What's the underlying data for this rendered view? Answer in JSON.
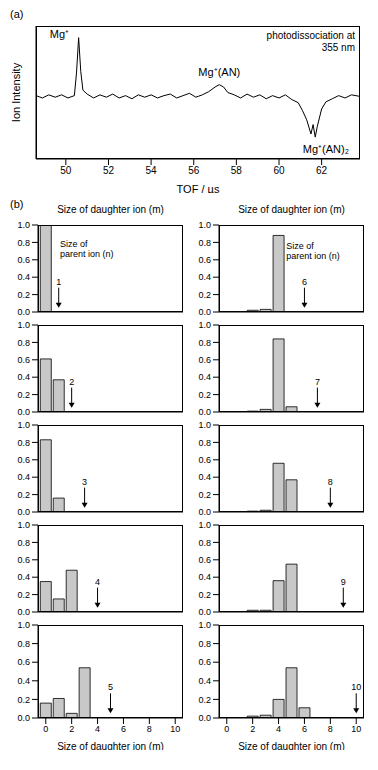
{
  "chart_data": [
    {
      "type": "line",
      "panel_label": "(a)",
      "subtitle": "photodissociation at 355 nm",
      "xlabel": "TOF / µs",
      "ylabel": "Ion Intensity",
      "color": "#000000",
      "tick_labels": "x",
      "x": [
        48.6,
        48.9,
        49.2,
        49.5,
        49.8,
        50.1,
        50.4,
        50.5,
        50.6,
        50.7,
        50.8,
        51.0,
        51.3,
        51.6,
        51.9,
        52.2,
        52.5,
        52.8,
        53.1,
        53.4,
        53.7,
        54.0,
        54.3,
        54.6,
        54.9,
        55.2,
        55.5,
        55.8,
        56.1,
        56.4,
        56.7,
        57.0,
        57.2,
        57.4,
        57.6,
        57.9,
        58.2,
        58.5,
        58.8,
        59.1,
        59.4,
        59.7,
        60.0,
        60.3,
        60.6,
        60.9,
        61.1,
        61.3,
        61.5,
        61.6,
        61.7,
        61.8,
        62.0,
        62.2,
        62.5,
        62.8,
        63.1,
        63.4,
        63.8
      ],
      "values": [
        0.01,
        -0.02,
        0.02,
        -0.01,
        0.02,
        -0.02,
        0.01,
        0.3,
        0.75,
        0.32,
        0.08,
        0.03,
        -0.02,
        0.02,
        -0.01,
        0.03,
        -0.02,
        0.01,
        -0.03,
        0.02,
        -0.01,
        0.02,
        -0.02,
        0.01,
        0.03,
        -0.02,
        0.01,
        0.04,
        -0.01,
        0.02,
        0.06,
        0.12,
        0.15,
        0.12,
        0.05,
        0.02,
        -0.02,
        0.03,
        -0.01,
        0.02,
        -0.03,
        0.01,
        -0.02,
        0.02,
        -0.04,
        -0.08,
        -0.18,
        -0.3,
        -0.48,
        -0.36,
        -0.52,
        -0.38,
        -0.16,
        -0.07,
        -0.03,
        0.01,
        -0.02,
        0.02,
        0.0
      ],
      "xlim": [
        48.6,
        63.8
      ],
      "xticks": [
        50,
        52,
        54,
        56,
        58,
        60,
        62
      ],
      "ylim": [
        -0.8,
        0.9
      ],
      "annotations": [
        {
          "text": "Mg⁺",
          "x": 49.7,
          "y": 0.78
        },
        {
          "text": "Mg⁺(AN)",
          "x": 57.2,
          "y": 0.3
        },
        {
          "text": "Mg⁺(AN)₂",
          "x": 62.2,
          "y": -0.68
        }
      ]
    },
    {
      "type": "bar",
      "panel_label": "(b)",
      "title": "Size of daughter ion (m)",
      "tick_labels": "y",
      "parent_size": 1,
      "color": "#c8c8c8",
      "x": [
        0,
        1,
        2,
        3,
        4,
        5,
        6,
        7,
        8,
        9,
        10
      ],
      "values": [
        1.0,
        0,
        0,
        0,
        0,
        0,
        0,
        0,
        0,
        0,
        0
      ],
      "xlim": [
        -0.6,
        10.6
      ],
      "xticks": [
        0,
        2,
        4,
        6,
        8,
        10
      ],
      "ylim": [
        0,
        1
      ],
      "yticks": [
        {
          "value": 0,
          "label": "0.0"
        },
        0.2,
        0.4,
        0.6,
        0.8,
        {
          "value": 1,
          "label": "1.0"
        }
      ],
      "annotations": [
        {
          "text": "Size of parent ion (n)",
          "x": 1.1,
          "y": 0.75
        }
      ]
    },
    {
      "type": "bar",
      "tick_labels": "y",
      "parent_size": 2,
      "color": "#c8c8c8",
      "x": [
        0,
        1,
        2,
        3,
        4,
        5,
        6,
        7,
        8,
        9,
        10
      ],
      "values": [
        0.61,
        0.37,
        0,
        0,
        0,
        0,
        0,
        0,
        0,
        0,
        0
      ],
      "xlim": [
        -0.6,
        10.6
      ],
      "xticks": [
        0,
        2,
        4,
        6,
        8,
        10
      ],
      "ylim": [
        0,
        1
      ],
      "yticks": [
        {
          "value": 0,
          "label": "0.0"
        },
        0.2,
        0.4,
        0.6,
        0.8,
        {
          "value": 1,
          "label": "1.0"
        }
      ]
    },
    {
      "type": "bar",
      "tick_labels": "y",
      "parent_size": 3,
      "color": "#c8c8c8",
      "x": [
        0,
        1,
        2,
        3,
        4,
        5,
        6,
        7,
        8,
        9,
        10
      ],
      "values": [
        0.83,
        0.16,
        0,
        0,
        0,
        0,
        0,
        0,
        0,
        0,
        0
      ],
      "xlim": [
        -0.6,
        10.6
      ],
      "xticks": [
        0,
        2,
        4,
        6,
        8,
        10
      ],
      "ylim": [
        0,
        1
      ],
      "yticks": [
        {
          "value": 0,
          "label": "0.0"
        },
        0.2,
        0.4,
        0.6,
        0.8,
        {
          "value": 1,
          "label": "1.0"
        }
      ]
    },
    {
      "type": "bar",
      "tick_labels": "y",
      "parent_size": 4,
      "color": "#c8c8c8",
      "x": [
        0,
        1,
        2,
        3,
        4,
        5,
        6,
        7,
        8,
        9,
        10
      ],
      "values": [
        0.35,
        0.15,
        0.48,
        0,
        0,
        0,
        0,
        0,
        0,
        0,
        0
      ],
      "xlim": [
        -0.6,
        10.6
      ],
      "xticks": [
        0,
        2,
        4,
        6,
        8,
        10
      ],
      "ylim": [
        0,
        1
      ],
      "yticks": [
        {
          "value": 0,
          "label": "0.0"
        },
        0.2,
        0.4,
        0.6,
        0.8,
        {
          "value": 1,
          "label": "1.0"
        }
      ]
    },
    {
      "type": "bar",
      "xlabel": "Size of daughter ion (m)",
      "parent_size": 5,
      "color": "#c8c8c8",
      "x": [
        0,
        1,
        2,
        3,
        4,
        5,
        6,
        7,
        8,
        9,
        10
      ],
      "values": [
        0.16,
        0.21,
        0.05,
        0.54,
        0,
        0,
        0,
        0,
        0,
        0,
        0
      ],
      "xlim": [
        -0.6,
        10.6
      ],
      "xticks": [
        0,
        2,
        4,
        6,
        8,
        10
      ],
      "ylim": [
        0,
        1
      ],
      "yticks": [
        {
          "value": 0,
          "label": "0.0"
        },
        0.2,
        0.4,
        0.6,
        0.8,
        {
          "value": 1,
          "label": "1.0"
        }
      ]
    },
    {
      "type": "bar",
      "title": "Size of daughter ion (m)",
      "tick_labels": "y",
      "parent_size": 6,
      "color": "#c8c8c8",
      "x": [
        0,
        1,
        2,
        3,
        4,
        5,
        6,
        7,
        8,
        9,
        10
      ],
      "values": [
        0,
        0,
        0.02,
        0.03,
        0.88,
        0,
        0,
        0,
        0,
        0,
        0
      ],
      "xlim": [
        -0.6,
        10.6
      ],
      "xticks": [
        0,
        2,
        4,
        6,
        8,
        10
      ],
      "ylim": [
        0,
        1
      ],
      "yticks": [
        {
          "value": 0,
          "label": "0.0"
        },
        0.2,
        0.4,
        0.6,
        0.8,
        {
          "value": 1,
          "label": "1.0"
        }
      ],
      "annotations": [
        {
          "text": "Size of parent ion (n)",
          "x": 4.6,
          "y": 0.72
        }
      ]
    },
    {
      "type": "bar",
      "tick_labels": "y",
      "parent_size": 7,
      "color": "#c8c8c8",
      "x": [
        0,
        1,
        2,
        3,
        4,
        5,
        6,
        7,
        8,
        9,
        10
      ],
      "values": [
        0,
        0,
        0.01,
        0.03,
        0.84,
        0.06,
        0,
        0,
        0,
        0,
        0
      ],
      "xlim": [
        -0.6,
        10.6
      ],
      "xticks": [
        0,
        2,
        4,
        6,
        8,
        10
      ],
      "ylim": [
        0,
        1
      ],
      "yticks": [
        {
          "value": 0,
          "label": "0.0"
        },
        0.2,
        0.4,
        0.6,
        0.8,
        {
          "value": 1,
          "label": "1.0"
        }
      ]
    },
    {
      "type": "bar",
      "tick_labels": "y",
      "parent_size": 8,
      "color": "#c8c8c8",
      "x": [
        0,
        1,
        2,
        3,
        4,
        5,
        6,
        7,
        8,
        9,
        10
      ],
      "values": [
        0,
        0,
        0.01,
        0.02,
        0.56,
        0.37,
        0,
        0,
        0,
        0,
        0
      ],
      "xlim": [
        -0.6,
        10.6
      ],
      "xticks": [
        0,
        2,
        4,
        6,
        8,
        10
      ],
      "ylim": [
        0,
        1
      ],
      "yticks": [
        {
          "value": 0,
          "label": "0.0"
        },
        0.2,
        0.4,
        0.6,
        0.8,
        {
          "value": 1,
          "label": "1.0"
        }
      ]
    },
    {
      "type": "bar",
      "tick_labels": "y",
      "parent_size": 9,
      "color": "#c8c8c8",
      "x": [
        0,
        1,
        2,
        3,
        4,
        5,
        6,
        7,
        8,
        9,
        10
      ],
      "values": [
        0,
        0,
        0.02,
        0.02,
        0.36,
        0.55,
        0,
        0,
        0,
        0,
        0
      ],
      "xlim": [
        -0.6,
        10.6
      ],
      "xticks": [
        0,
        2,
        4,
        6,
        8,
        10
      ],
      "ylim": [
        0,
        1
      ],
      "yticks": [
        {
          "value": 0,
          "label": "0.0"
        },
        0.2,
        0.4,
        0.6,
        0.8,
        {
          "value": 1,
          "label": "1.0"
        }
      ]
    },
    {
      "type": "bar",
      "xlabel": "Size of daughter ion (m)",
      "parent_size": 10,
      "color": "#c8c8c8",
      "x": [
        0,
        1,
        2,
        3,
        4,
        5,
        6,
        7,
        8,
        9,
        10
      ],
      "values": [
        0,
        0,
        0.02,
        0.03,
        0.2,
        0.54,
        0.11,
        0,
        0,
        0,
        0
      ],
      "xlim": [
        -0.6,
        10.6
      ],
      "xticks": [
        0,
        2,
        4,
        6,
        8,
        10
      ],
      "ylim": [
        0,
        1
      ],
      "yticks": [
        {
          "value": 0,
          "label": "0.0"
        },
        0.2,
        0.4,
        0.6,
        0.8,
        {
          "value": 1,
          "label": "1.0"
        }
      ]
    }
  ]
}
